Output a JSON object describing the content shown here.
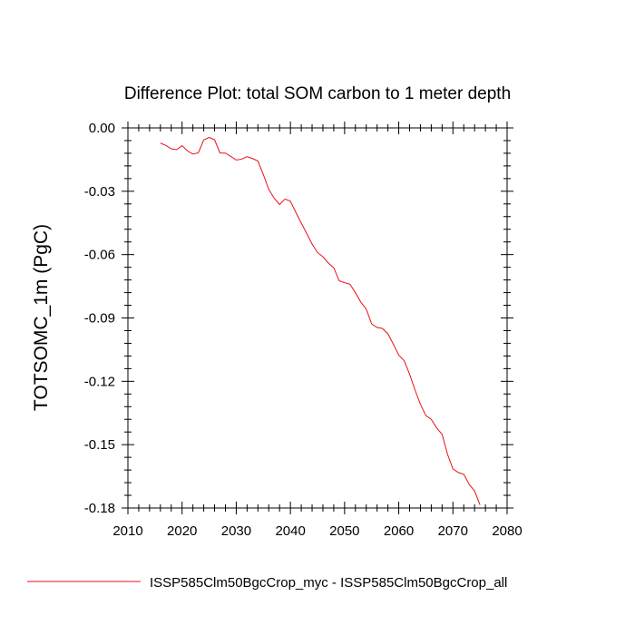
{
  "chart_data": {
    "type": "line",
    "title": "Difference Plot: total SOM carbon to 1 meter depth",
    "xlabel": "",
    "ylabel": "TOTSOMC_1m  (PgC)",
    "xlim": [
      2010,
      2080
    ],
    "ylim": [
      -0.18,
      0.0
    ],
    "xticks": [
      2010,
      2020,
      2030,
      2040,
      2050,
      2060,
      2070,
      2080
    ],
    "yticks": [
      0.0,
      -0.03,
      -0.06,
      -0.09,
      -0.12,
      -0.15,
      -0.18
    ],
    "xtick_labels": [
      "2010",
      "2020",
      "2030",
      "2040",
      "2050",
      "2060",
      "2070",
      "2080"
    ],
    "ytick_labels": [
      "0.00",
      "-0.03",
      "-0.06",
      "-0.09",
      "-0.12",
      "-0.15",
      "-0.18"
    ],
    "grid": false,
    "legend_position": "bottom",
    "series": [
      {
        "name": "ISSP585Clm50BgcCrop_myc - ISSP585Clm50BgcCrop_all",
        "color": "#e8101b",
        "x": [
          2016,
          2017,
          2018,
          2019,
          2020,
          2021,
          2022,
          2023,
          2024,
          2025,
          2026,
          2027,
          2028,
          2029,
          2030,
          2031,
          2032,
          2033,
          2034,
          2035,
          2036,
          2037,
          2038,
          2039,
          2040,
          2041,
          2042,
          2043,
          2044,
          2045,
          2046,
          2047,
          2048,
          2049,
          2050,
          2051,
          2052,
          2053,
          2054,
          2055,
          2056,
          2057,
          2058,
          2059,
          2060,
          2061,
          2062,
          2063,
          2064,
          2065,
          2066,
          2067,
          2068,
          2069,
          2070,
          2071,
          2072,
          2073,
          2074,
          2075
        ],
        "y": [
          -0.0072,
          -0.0083,
          -0.0099,
          -0.0103,
          -0.0084,
          -0.0109,
          -0.0124,
          -0.0118,
          -0.0057,
          -0.0045,
          -0.0056,
          -0.0119,
          -0.0119,
          -0.0135,
          -0.0152,
          -0.0148,
          -0.0136,
          -0.0145,
          -0.0157,
          -0.0221,
          -0.0291,
          -0.0333,
          -0.0363,
          -0.0337,
          -0.0347,
          -0.04,
          -0.045,
          -0.05,
          -0.055,
          -0.059,
          -0.061,
          -0.064,
          -0.0662,
          -0.0724,
          -0.0733,
          -0.074,
          -0.078,
          -0.0825,
          -0.0858,
          -0.0928,
          -0.0945,
          -0.095,
          -0.0975,
          -0.1024,
          -0.1076,
          -0.1102,
          -0.1166,
          -0.1241,
          -0.1309,
          -0.1362,
          -0.138,
          -0.1421,
          -0.1451,
          -0.1545,
          -0.1615,
          -0.1632,
          -0.164,
          -0.1688,
          -0.1719,
          -0.1785
        ]
      }
    ]
  }
}
